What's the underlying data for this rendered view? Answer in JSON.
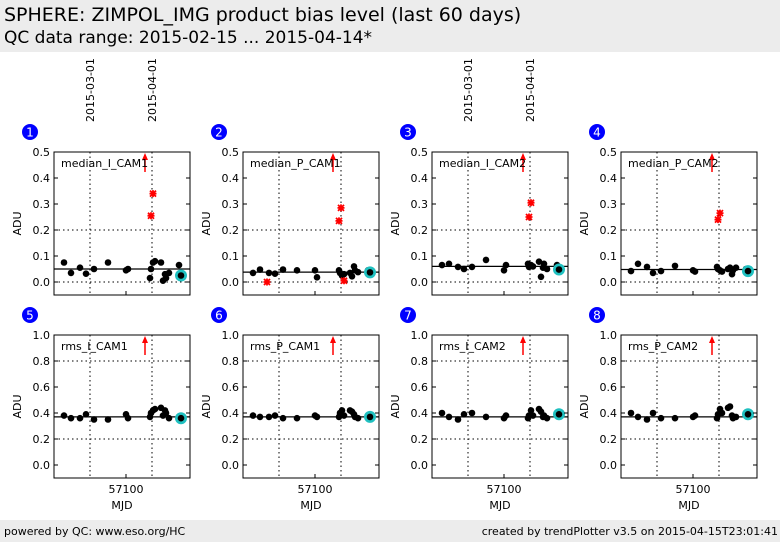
{
  "header": {
    "title": "SPHERE: ZIMPOL_IMG product bias level (last 60 days)",
    "subtitle": "QC data range: 2015-02-15 ... 2015-04-14*"
  },
  "footer": {
    "left": "powered by QC: www.eso.org/HC",
    "right": "created by trendPlotter v3.5 on 2015-04-15T23:01:41"
  },
  "colors": {
    "points": "#000000",
    "outlier": "#ff0000",
    "latest_ring": "#20c0c0",
    "badge": "#0000ff",
    "arrow": "#ff0000"
  },
  "chart_data": {
    "type": "scatter",
    "xlabel": "MJD",
    "ylabel": "ADU",
    "xlim": [
      57064,
      57132
    ],
    "xticks": [
      57100
    ],
    "date_markers": [
      {
        "mjd": 57082,
        "label": "2015-03-01"
      },
      {
        "mjd": 57113,
        "label": "2015-04-01"
      }
    ],
    "x": [
      57069,
      57072.5,
      57077,
      57080,
      57084,
      57091,
      57100,
      57101,
      57112,
      57112.5,
      57113.5,
      57114.5,
      57117.5,
      57118.5,
      57119.5,
      57120,
      57121.5,
      57126.5,
      57127.5
    ],
    "panels": [
      {
        "number": "1",
        "title": "median_I_CAM1",
        "ylim": [
          -0.05,
          0.5
        ],
        "yticks": [
          "0.0",
          "0.1",
          "0.2",
          "0.3",
          "0.4",
          "0.5"
        ],
        "tickvals": [
          0,
          0.1,
          0.2,
          0.3,
          0.4,
          0.5
        ],
        "thresholds": [
          0.0,
          0.2
        ],
        "mean": 0.05,
        "show_dates": true,
        "arrow_mjd": 57109.5,
        "y": [
          0.075,
          0.035,
          0.055,
          0.032,
          0.05,
          0.075,
          0.045,
          0.05,
          0.015,
          0.05,
          0.075,
          0.08,
          0.075,
          0.005,
          0.03,
          0.015,
          0.035,
          0.065,
          0.025
        ],
        "outliers": [
          [
            57112.5,
            0.255
          ],
          [
            57113.5,
            0.34
          ]
        ]
      },
      {
        "number": "2",
        "title": "median_P_CAM1",
        "ylim": [
          -0.05,
          0.5
        ],
        "yticks": [
          "0.0",
          "0.1",
          "0.2",
          "0.3",
          "0.4",
          "0.5"
        ],
        "tickvals": [
          0,
          0.1,
          0.2,
          0.3,
          0.4,
          0.5
        ],
        "thresholds": [
          0.0,
          0.2
        ],
        "mean": 0.038,
        "show_dates": false,
        "arrow_mjd": 57109,
        "y": [
          0.035,
          0.048,
          0.035,
          0.032,
          0.048,
          0.045,
          0.045,
          0.018,
          0.045,
          0.035,
          0.025,
          0.03,
          0.035,
          0.022,
          0.06,
          0.045,
          0.038,
          0.045,
          0.037
        ],
        "outliers": [
          [
            57076,
            0.0
          ],
          [
            57112,
            0.235
          ],
          [
            57113,
            0.285
          ],
          [
            57114.5,
            0.005
          ]
        ]
      },
      {
        "number": "3",
        "title": "median_I_CAM2",
        "ylim": [
          -0.05,
          0.5
        ],
        "yticks": [
          "0.0",
          "0.1",
          "0.2",
          "0.3",
          "0.4",
          "0.5"
        ],
        "tickvals": [
          0,
          0.1,
          0.2,
          0.3,
          0.4,
          0.5
        ],
        "thresholds": [
          0.0,
          0.2
        ],
        "mean": 0.06,
        "show_dates": true,
        "arrow_mjd": 57109.5,
        "y": [
          0.065,
          0.07,
          0.058,
          0.05,
          0.058,
          0.085,
          0.045,
          0.065,
          0.07,
          0.058,
          0.065,
          0.06,
          0.078,
          0.02,
          0.055,
          0.07,
          0.05,
          0.065,
          0.048
        ],
        "outliers": [
          [
            57112.5,
            0.25
          ],
          [
            57113.5,
            0.305
          ]
        ]
      },
      {
        "number": "4",
        "title": "median_P_CAM2",
        "ylim": [
          -0.05,
          0.5
        ],
        "yticks": [
          "0.0",
          "0.1",
          "0.2",
          "0.3",
          "0.4",
          "0.5"
        ],
        "tickvals": [
          0,
          0.1,
          0.2,
          0.3,
          0.4,
          0.5
        ],
        "thresholds": [
          0.0,
          0.2
        ],
        "mean": 0.048,
        "show_dates": false,
        "arrow_mjd": 57109.5,
        "y": [
          0.042,
          0.07,
          0.058,
          0.035,
          0.042,
          0.062,
          0.045,
          0.04,
          0.058,
          0.05,
          0.045,
          0.04,
          0.05,
          0.055,
          0.03,
          0.045,
          0.055,
          0.05,
          0.042
        ],
        "outliers": [
          [
            57112.5,
            0.24
          ],
          [
            57113.5,
            0.265
          ]
        ]
      },
      {
        "number": "5",
        "title": "rms_I_CAM1",
        "ylim": [
          -0.1,
          1.0
        ],
        "yticks": [
          "0.0",
          "0.2",
          "0.4",
          "0.6",
          "0.8",
          "1.0"
        ],
        "tickvals": [
          0,
          0.2,
          0.4,
          0.6,
          0.8,
          1.0
        ],
        "thresholds": [
          0.2,
          0.8
        ],
        "mean": 0.37,
        "show_dates": false,
        "arrow_mjd": 57109.5,
        "y": [
          0.38,
          0.36,
          0.36,
          0.39,
          0.35,
          0.35,
          0.39,
          0.36,
          0.37,
          0.4,
          0.42,
          0.43,
          0.44,
          0.38,
          0.42,
          0.4,
          0.36,
          0.37,
          0.36
        ],
        "outliers": []
      },
      {
        "number": "6",
        "title": "rms_P_CAM1",
        "ylim": [
          -0.1,
          1.0
        ],
        "yticks": [
          "0.0",
          "0.2",
          "0.4",
          "0.6",
          "0.8",
          "1.0"
        ],
        "tickvals": [
          0,
          0.2,
          0.4,
          0.6,
          0.8,
          1.0
        ],
        "thresholds": [
          0.2,
          0.8
        ],
        "mean": 0.37,
        "show_dates": false,
        "arrow_mjd": 57109,
        "y": [
          0.38,
          0.37,
          0.37,
          0.38,
          0.36,
          0.36,
          0.38,
          0.37,
          0.37,
          0.4,
          0.42,
          0.38,
          0.42,
          0.41,
          0.39,
          0.37,
          0.36,
          0.38,
          0.37
        ],
        "outliers": []
      },
      {
        "number": "7",
        "title": "rms_I_CAM2",
        "ylim": [
          -0.1,
          1.0
        ],
        "yticks": [
          "0.0",
          "0.2",
          "0.4",
          "0.6",
          "0.8",
          "1.0"
        ],
        "tickvals": [
          0,
          0.2,
          0.4,
          0.6,
          0.8,
          1.0
        ],
        "thresholds": [
          0.2,
          0.8
        ],
        "mean": 0.37,
        "show_dates": false,
        "arrow_mjd": 57109.5,
        "y": [
          0.4,
          0.37,
          0.35,
          0.39,
          0.4,
          0.37,
          0.36,
          0.38,
          0.36,
          0.38,
          0.42,
          0.38,
          0.43,
          0.41,
          0.37,
          0.38,
          0.36,
          0.38,
          0.39
        ],
        "outliers": []
      },
      {
        "number": "8",
        "title": "rms_P_CAM2",
        "ylim": [
          -0.1,
          1.0
        ],
        "yticks": [
          "0.0",
          "0.2",
          "0.4",
          "0.6",
          "0.8",
          "1.0"
        ],
        "tickvals": [
          0,
          0.2,
          0.4,
          0.6,
          0.8,
          1.0
        ],
        "thresholds": [
          0.2,
          0.8
        ],
        "mean": 0.37,
        "show_dates": false,
        "arrow_mjd": 57109.5,
        "y": [
          0.4,
          0.37,
          0.35,
          0.4,
          0.36,
          0.36,
          0.37,
          0.38,
          0.36,
          0.39,
          0.43,
          0.4,
          0.44,
          0.45,
          0.38,
          0.36,
          0.37,
          0.38,
          0.39
        ],
        "outliers": []
      }
    ]
  }
}
